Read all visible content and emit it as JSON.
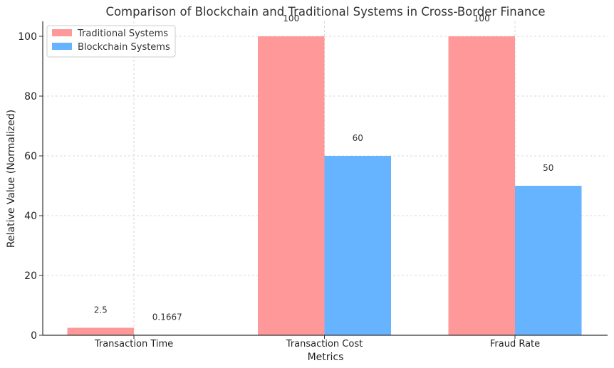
{
  "chart_data": {
    "type": "bar",
    "title": "Comparison of Blockchain and Traditional Systems in Cross-Border Finance",
    "xlabel": "Metrics",
    "ylabel": "Relative Value (Normalized)",
    "categories": [
      "Transaction Time",
      "Transaction Cost",
      "Fraud Rate"
    ],
    "series": [
      {
        "name": "Traditional Systems",
        "values": [
          2.5,
          100,
          100
        ],
        "labels": [
          "2.5",
          "100",
          "100"
        ],
        "color": "#ff9999"
      },
      {
        "name": "Blockchain Systems",
        "values": [
          0.1667,
          60,
          50
        ],
        "labels": [
          "0.1667",
          "60",
          "50"
        ],
        "color": "#66b3ff"
      }
    ],
    "ylim": [
      0,
      105
    ],
    "yticks": [
      0,
      20,
      40,
      60,
      80,
      100
    ],
    "ytick_labels": [
      "0",
      "20",
      "40",
      "60",
      "80",
      "100"
    ],
    "grid": true,
    "legend_position": "top-left"
  }
}
